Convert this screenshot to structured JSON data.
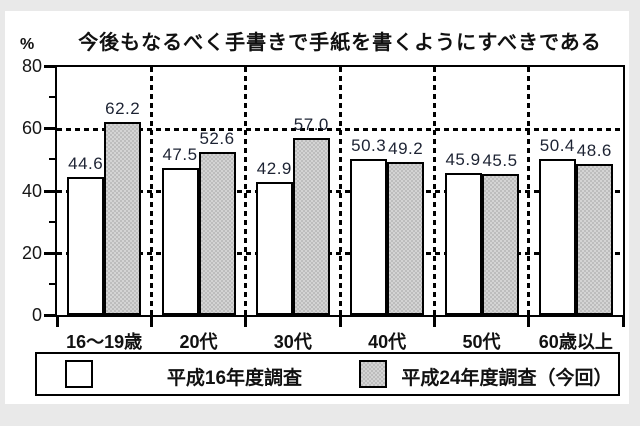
{
  "chart_data": {
    "type": "bar",
    "title": "今後もなるべく手書きで手紙を書くようにすべきである",
    "unit_label": "%",
    "categories": [
      "16〜19歳",
      "20代",
      "30代",
      "40代",
      "50代",
      "60歳以上"
    ],
    "series": [
      {
        "name": "平成16年度調査",
        "style": "white",
        "values": [
          44.6,
          47.5,
          42.9,
          50.3,
          45.9,
          50.4
        ]
      },
      {
        "name": "平成24年度調査（今回）",
        "style": "gray",
        "values": [
          62.2,
          52.6,
          57.0,
          49.2,
          45.5,
          48.6
        ]
      }
    ],
    "ylim": [
      0,
      80
    ],
    "yticks": [
      0,
      20,
      40,
      60,
      80
    ],
    "yticks_minor": [
      10,
      30,
      50,
      70
    ],
    "gridlines": [
      20,
      40,
      60
    ],
    "grid_style": "dashed",
    "value_labels": true,
    "value_label_decimals": 1,
    "legend_position": "bottom"
  },
  "colors": {
    "outer_background": "#e9e9e9",
    "panel_background": "#ffffff",
    "bar_white": "#ffffff",
    "bar_gray": "#cdcdcd",
    "line": "#000000",
    "text": "#111111",
    "value_text": "#1d2333"
  }
}
